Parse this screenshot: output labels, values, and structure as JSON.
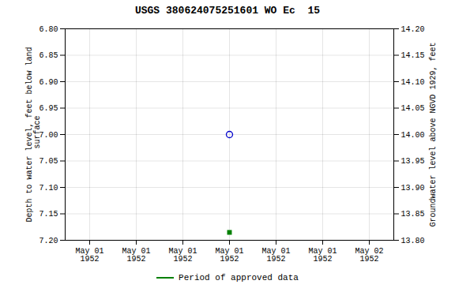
{
  "chart_data": {
    "type": "scatter",
    "title": "USGS 380624075251601 WO Ec  15",
    "categories": [
      "May 01\n1952",
      "May 01\n1952",
      "May 01\n1952",
      "May 01\n1952",
      "May 01\n1952",
      "May 01\n1952",
      "May 02\n1952"
    ],
    "ylabel": "Depth to water level, feet below land\n surface",
    "y2label": "Groundwater level above NGVD 1929, feet",
    "ylim": [
      7.2,
      6.8
    ],
    "yticks": [
      {
        "value": 6.8,
        "label": "6.80"
      },
      {
        "value": 6.85,
        "label": "6.85"
      },
      {
        "value": 6.9,
        "label": "6.90"
      },
      {
        "value": 6.95,
        "label": "6.95"
      },
      {
        "value": 7.0,
        "label": "7.00"
      },
      {
        "value": 7.05,
        "label": "7.05"
      },
      {
        "value": 7.1,
        "label": "7.10"
      },
      {
        "value": 7.15,
        "label": "7.15"
      },
      {
        "value": 7.2,
        "label": "7.20"
      }
    ],
    "y2lim": [
      13.8,
      14.2
    ],
    "y2ticks": [
      {
        "value": 14.2,
        "label": "14.20"
      },
      {
        "value": 14.15,
        "label": "14.15"
      },
      {
        "value": 14.1,
        "label": "14.10"
      },
      {
        "value": 14.05,
        "label": "14.05"
      },
      {
        "value": 14.0,
        "label": "14.00"
      },
      {
        "value": 13.95,
        "label": "13.95"
      },
      {
        "value": 13.9,
        "label": "13.90"
      },
      {
        "value": 13.85,
        "label": "13.85"
      },
      {
        "value": 13.8,
        "label": "13.80"
      }
    ],
    "series": [
      {
        "color": "#0000cc",
        "marker": "open_circle",
        "values": [
          null,
          null,
          null,
          7.0,
          null,
          null,
          null
        ]
      },
      {
        "name": "Period of approved data",
        "color": "#008000",
        "marker": "square",
        "values": [
          null,
          null,
          null,
          7.185,
          null,
          null,
          null
        ]
      }
    ],
    "grid": true,
    "legend": "bottom"
  }
}
